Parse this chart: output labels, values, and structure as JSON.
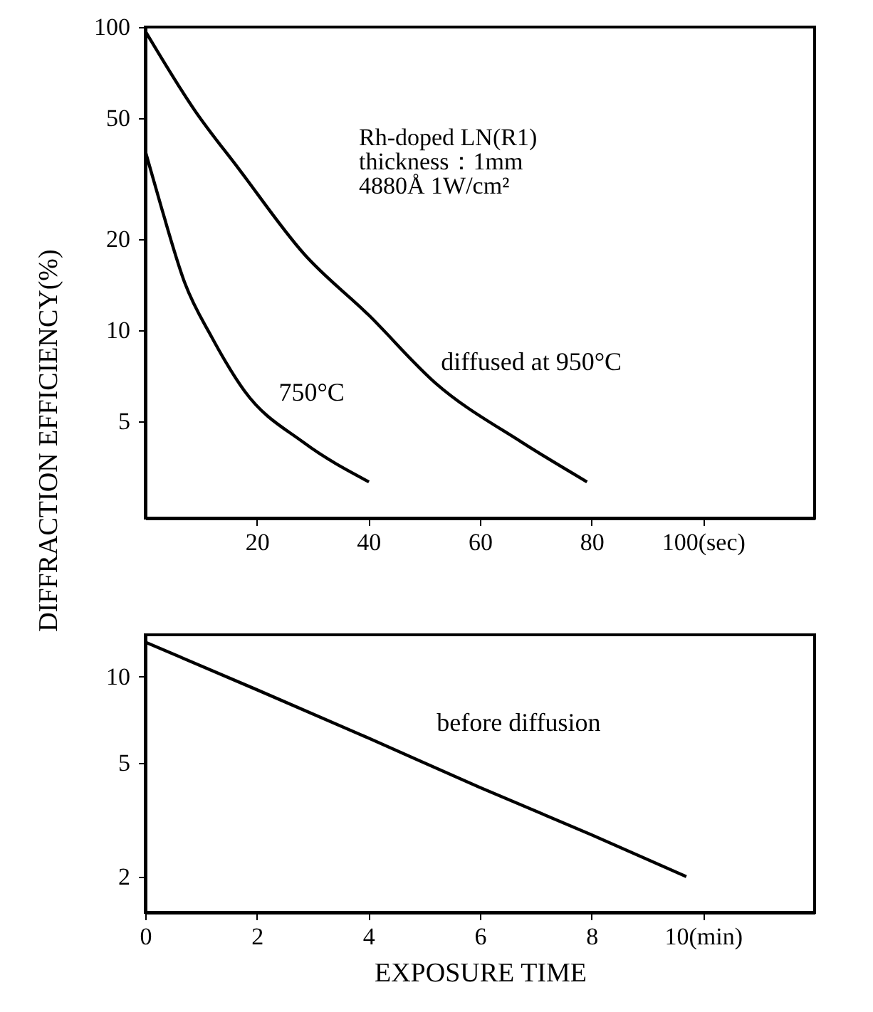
{
  "chart_data": [
    {
      "type": "line",
      "ylabel": "DIFFRACTION EFFICIENCY(%)",
      "log": "y",
      "xlim": [
        0,
        120
      ],
      "xticks": [
        20,
        40,
        60,
        80,
        {
          "value": 100,
          "label": "100(sec)"
        }
      ],
      "ylim": [
        2.4,
        100
      ],
      "yticks": [
        5,
        10,
        20,
        50,
        100
      ],
      "grid": false,
      "legend": false,
      "marker": "none",
      "line_style": "solid",
      "annotations": [
        "Rh-doped LN(R1)",
        "thickness：1mm",
        "4880Å  1W/cm²"
      ],
      "series": [
        {
          "name": "750°C",
          "color": "#000000",
          "x": [
            0,
            3,
            7.1,
            11.9,
            17.8,
            28.4,
            40.1
          ],
          "values": [
            39,
            25,
            14.3,
            9.5,
            6.3,
            4.26,
            3.16
          ]
        },
        {
          "name": "diffused at 950°C",
          "color": "#000000",
          "x": [
            0,
            8.9,
            16.8,
            28.4,
            40.1,
            52,
            67.5,
            79.2
          ],
          "values": [
            97,
            53,
            34,
            17.9,
            11.2,
            6.7,
            4.27,
            3.16
          ]
        }
      ]
    },
    {
      "type": "line",
      "xlabel": "EXPOSURE TIME",
      "log": "y",
      "xlim": [
        0,
        12
      ],
      "xticks": [
        0,
        2,
        4,
        6,
        8,
        {
          "value": 10,
          "label": "10(min)"
        }
      ],
      "ylim": [
        1.5,
        14
      ],
      "yticks": [
        2,
        5,
        10
      ],
      "grid": false,
      "legend": false,
      "marker": "none",
      "line_style": "solid",
      "series": [
        {
          "name": "before diffusion",
          "color": "#000000",
          "x": [
            0,
            2,
            4,
            6,
            8,
            9.7
          ],
          "values": [
            13.2,
            9.0,
            6.1,
            4.1,
            2.8,
            2.0
          ]
        }
      ]
    }
  ]
}
